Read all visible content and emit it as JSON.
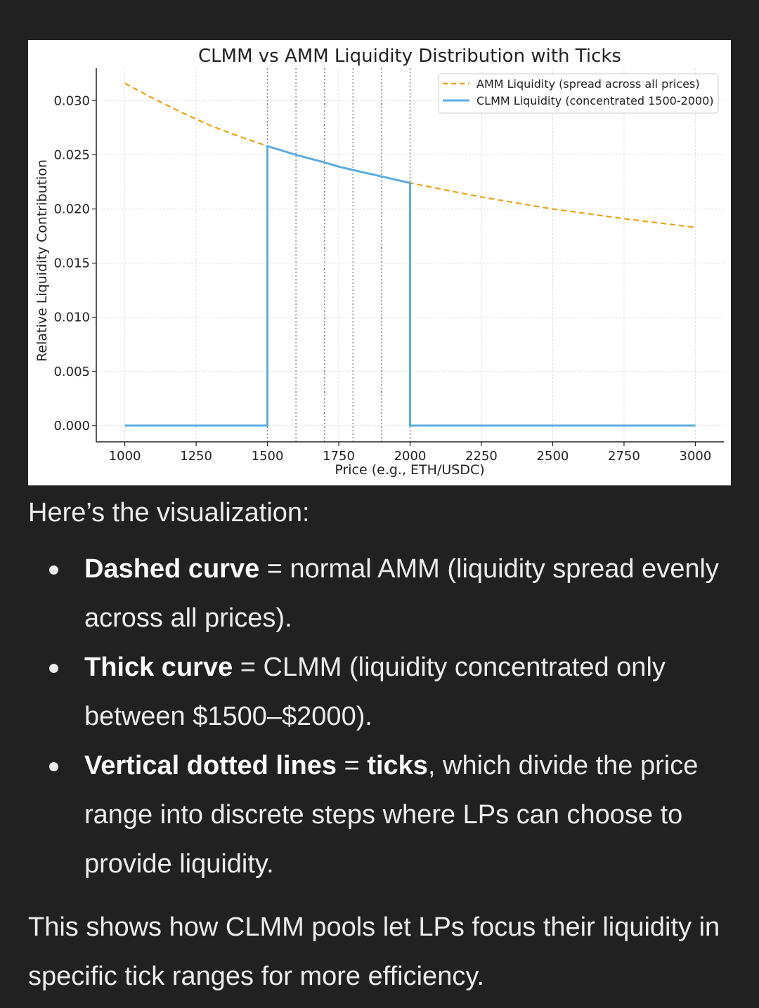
{
  "chart_data": {
    "type": "line",
    "title": "CLMM vs AMM Liquidity Distribution with Ticks",
    "xlabel": "Price (e.g., ETH/USDC)",
    "ylabel": "Relative Liquidity Contribution",
    "xlim": [
      900,
      3100
    ],
    "ylim": [
      -0.0015,
      0.033
    ],
    "x_ticks": [
      1000,
      1250,
      1500,
      1750,
      2000,
      2250,
      2500,
      2750,
      3000
    ],
    "y_ticks": [
      0.0,
      0.005,
      0.01,
      0.015,
      0.02,
      0.025,
      0.03
    ],
    "y_tick_labels": [
      "0.000",
      "0.005",
      "0.010",
      "0.015",
      "0.020",
      "0.025",
      "0.030"
    ],
    "grid": true,
    "legend_position": "top-right",
    "tick_lines_x": [
      1500,
      1600,
      1700,
      1800,
      1900,
      2000
    ],
    "series": [
      {
        "name": "AMM Liquidity (spread across all prices)",
        "style": "dashed",
        "color": "#E8A317",
        "x": [
          1000,
          1100,
          1200,
          1250,
          1300,
          1400,
          1500,
          1600,
          1700,
          1750,
          1800,
          1900,
          2000,
          2250,
          2500,
          2750,
          3000
        ],
        "y": [
          0.0316,
          0.0302,
          0.0289,
          0.0283,
          0.0277,
          0.0267,
          0.0258,
          0.025,
          0.0243,
          0.0239,
          0.0236,
          0.023,
          0.0224,
          0.0211,
          0.02,
          0.0191,
          0.0183
        ]
      },
      {
        "name": "CLMM Liquidity (concentrated 1500-2000)",
        "style": "solid",
        "color": "#5DADE2",
        "x": [
          1000,
          1500,
          1500,
          1600,
          1700,
          1750,
          1800,
          1900,
          2000,
          2000,
          3000
        ],
        "y": [
          0,
          0,
          0.0258,
          0.025,
          0.0243,
          0.0239,
          0.0236,
          0.023,
          0.0224,
          0,
          0
        ]
      }
    ]
  },
  "text": {
    "intro": "Here’s the visualization:",
    "bullets": [
      {
        "bold": "Dashed curve",
        "rest": " = normal AMM (liquidity spread evenly across all prices)."
      },
      {
        "bold": "Thick curve",
        "rest": " = CLMM (liquidity concentrated only between $1500–$2000)."
      },
      {
        "bold": "Vertical dotted lines",
        "mid": " = ",
        "bold2": "ticks",
        "rest": ", which divide the price range into discrete steps where LPs can choose to provide liquidity."
      }
    ],
    "conclusion": "This shows how CLMM pools let LPs focus their liquidity in specific tick ranges for more efficiency."
  }
}
